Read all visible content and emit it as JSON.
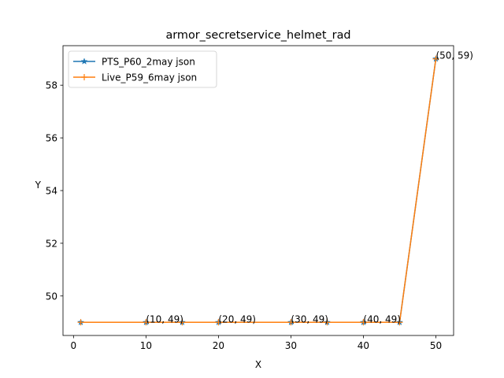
{
  "chart_data": {
    "type": "line",
    "title": "armor_secretservice_helmet_rad",
    "xlabel": "X",
    "ylabel": "Y",
    "xlim": [
      -1.45,
      52.45
    ],
    "ylim": [
      48.5,
      59.5
    ],
    "xticks": [
      0,
      10,
      20,
      30,
      40,
      50
    ],
    "yticks": [
      50,
      52,
      54,
      56,
      58
    ],
    "legend_position": "top-left",
    "grid": false,
    "x": [
      1,
      10,
      15,
      20,
      30,
      35,
      40,
      45,
      50
    ],
    "series": [
      {
        "name": "PTS_P60_2may json",
        "marker": "star",
        "color": "#1f77b4",
        "values": [
          49,
          49,
          49,
          49,
          49,
          49,
          49,
          49,
          59
        ]
      },
      {
        "name": "Live_P59_6may json",
        "marker": "plus",
        "color": "#ff7f0e",
        "values": [
          49,
          49,
          49,
          49,
          49,
          49,
          49,
          49,
          59
        ]
      }
    ],
    "annotations": [
      {
        "x": 10,
        "y": 49,
        "text": "(10, 49)"
      },
      {
        "x": 20,
        "y": 49,
        "text": "(20, 49)"
      },
      {
        "x": 30,
        "y": 49,
        "text": "(30, 49)"
      },
      {
        "x": 40,
        "y": 49,
        "text": "(40, 49)"
      },
      {
        "x": 50,
        "y": 59,
        "text": "(50, 59)"
      }
    ]
  }
}
